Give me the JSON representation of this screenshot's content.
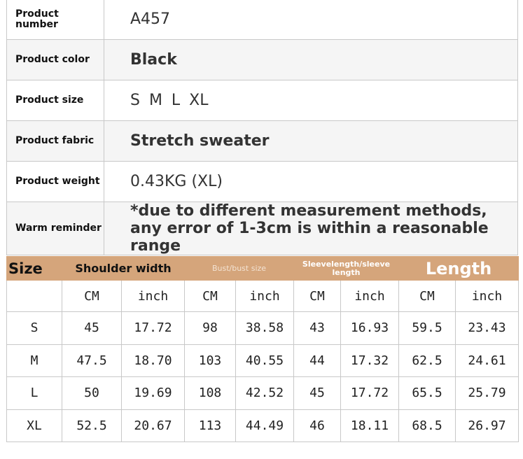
{
  "product_info": [
    {
      "label": "Product number",
      "value": "A457"
    },
    {
      "label": "Product color",
      "value": "Black"
    },
    {
      "label": "Product size",
      "value": "S M L XL"
    },
    {
      "label": "Product fabric",
      "value": "Stretch sweater"
    },
    {
      "label": "Product weight",
      "value": "0.43KG (XL)"
    },
    {
      "label": "Warm reminder",
      "value": "*due to different measurement methods, any error of 1-3cm is within a reasonable range"
    }
  ],
  "size_table": {
    "header": {
      "size": "Size",
      "shoulder": "Shoulder width",
      "bust": "Bust/bust size",
      "sleeve": "Sleevelength/sleeve length",
      "length": "Length"
    },
    "units": [
      "CM",
      "inch",
      "CM",
      "inch",
      "CM",
      "inch",
      "CM",
      "inch"
    ],
    "rows": [
      [
        "S",
        "45",
        "17.72",
        "98",
        "38.58",
        "43",
        "16.93",
        "59.5",
        "23.43"
      ],
      [
        "M",
        "47.5",
        "18.70",
        "103",
        "40.55",
        "44",
        "17.32",
        "62.5",
        "24.61"
      ],
      [
        "L",
        "50",
        "19.69",
        "108",
        "42.52",
        "45",
        "17.72",
        "65.5",
        "25.79"
      ],
      [
        "XL",
        "52.5",
        "20.67",
        "113",
        "44.49",
        "46",
        "18.11",
        "68.5",
        "26.97"
      ]
    ],
    "header_color": "#d5a57b"
  }
}
